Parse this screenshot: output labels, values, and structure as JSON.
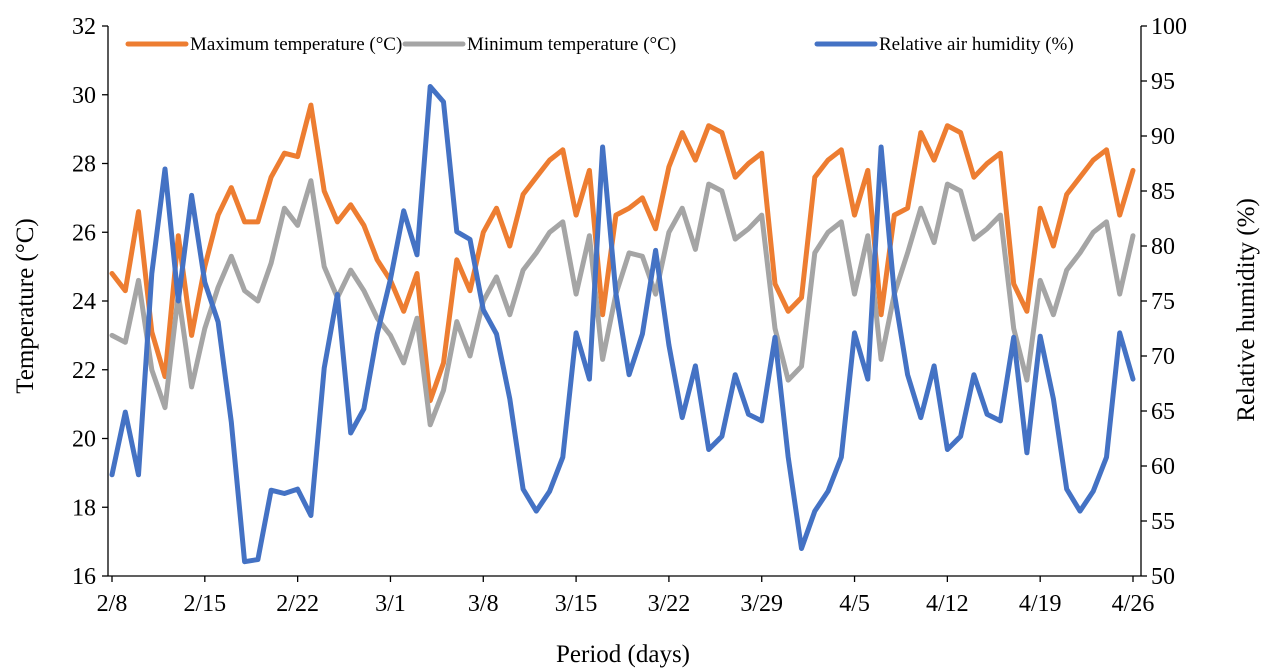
{
  "chart_data": {
    "type": "line",
    "xlabel": "Period (days)",
    "ylabel": "Temperature (°C)",
    "y2label": "Relative humidity (%)",
    "ylim": [
      16,
      32
    ],
    "yticks": [
      16,
      18,
      20,
      22,
      24,
      26,
      28,
      30,
      32
    ],
    "y2lim": [
      50,
      100
    ],
    "y2ticks": [
      50,
      55,
      60,
      65,
      70,
      75,
      80,
      85,
      90,
      95,
      100
    ],
    "x_tick_labels": [
      "2/8",
      "2/15",
      "2/22",
      "3/1",
      "3/8",
      "3/15",
      "3/22",
      "3/29",
      "4/5",
      "4/12",
      "4/19",
      "4/26"
    ],
    "x_tick_days": [
      0,
      7,
      14,
      21,
      28,
      35,
      42,
      49,
      56,
      63,
      70,
      77
    ],
    "legend_position": "top",
    "grid": false,
    "series": [
      {
        "name": "Maximum temperature (°C)",
        "axis": "left",
        "color": "#ED7D31",
        "values": [
          24.8,
          24.3,
          26.6,
          23.1,
          21.8,
          25.9,
          23.0,
          25.0,
          26.5,
          27.3,
          26.3,
          26.3,
          27.6,
          28.3,
          28.2,
          29.7,
          27.2,
          26.3,
          26.8,
          26.2,
          25.2,
          24.6,
          23.7,
          24.8,
          21.1,
          22.2,
          25.2,
          24.3,
          26.0,
          26.7,
          25.6,
          27.1,
          27.6,
          28.1,
          28.4,
          26.5,
          27.8,
          23.6,
          26.5,
          26.7,
          27.0,
          26.1,
          27.9,
          28.9,
          28.1,
          29.1,
          28.9,
          27.6,
          28.0,
          28.3,
          24.5,
          23.7,
          24.1,
          27.6,
          28.1,
          28.4,
          26.5,
          27.8,
          23.6,
          26.5,
          26.7,
          28.9,
          28.1,
          29.1,
          28.9,
          27.6,
          28.0,
          28.3,
          24.5,
          23.7,
          26.7,
          25.6,
          27.1,
          27.6,
          28.1,
          28.4,
          26.5,
          27.8
        ]
      },
      {
        "name": "Minimum temperature (°C)",
        "axis": "left",
        "color": "#A5A5A5",
        "values": [
          23.0,
          22.8,
          24.6,
          22.0,
          20.9,
          24.2,
          21.5,
          23.2,
          24.4,
          25.3,
          24.3,
          24.0,
          25.1,
          26.7,
          26.2,
          27.5,
          25.0,
          24.1,
          24.9,
          24.3,
          23.5,
          23.0,
          22.2,
          23.5,
          20.4,
          21.4,
          23.4,
          22.4,
          24.0,
          24.7,
          23.6,
          24.9,
          25.4,
          26.0,
          26.3,
          24.2,
          25.9,
          22.3,
          24.2,
          25.4,
          25.3,
          24.2,
          26.0,
          26.7,
          25.5,
          27.4,
          27.2,
          25.8,
          26.1,
          26.5,
          23.2,
          21.7,
          22.1,
          25.4,
          26.0,
          26.3,
          24.2,
          25.9,
          22.3,
          24.2,
          25.4,
          26.7,
          25.7,
          27.4,
          27.2,
          25.8,
          26.1,
          26.5,
          23.2,
          21.7,
          24.6,
          23.6,
          24.9,
          25.4,
          26.0,
          26.3,
          24.2,
          25.9
        ]
      },
      {
        "name": "Relative air humidity (%)",
        "axis": "right",
        "color": "#4472C4",
        "values": [
          59.2,
          64.9,
          59.2,
          77.5,
          87.0,
          75.0,
          84.6,
          76.7,
          73.1,
          64.0,
          51.3,
          51.5,
          57.8,
          57.5,
          57.9,
          55.5,
          68.9,
          75.6,
          63.0,
          65.2,
          72.0,
          77.0,
          83.2,
          79.2,
          94.5,
          93.1,
          81.3,
          80.6,
          74.2,
          72.0,
          66.1,
          57.9,
          55.9,
          57.7,
          60.8,
          72.1,
          67.9,
          89.0,
          75.7,
          68.3,
          72.0,
          79.6,
          71.0,
          64.4,
          69.1,
          61.5,
          62.7,
          68.3,
          64.7,
          64.1,
          71.7,
          60.8,
          52.5,
          55.9,
          57.7,
          60.8,
          72.1,
          67.9,
          89.0,
          75.7,
          68.3,
          64.4,
          69.1,
          61.5,
          62.7,
          68.3,
          64.7,
          64.1,
          71.7,
          61.2,
          71.8,
          66.1,
          57.9,
          55.9,
          57.7,
          60.8,
          72.1,
          67.9
        ]
      }
    ]
  }
}
